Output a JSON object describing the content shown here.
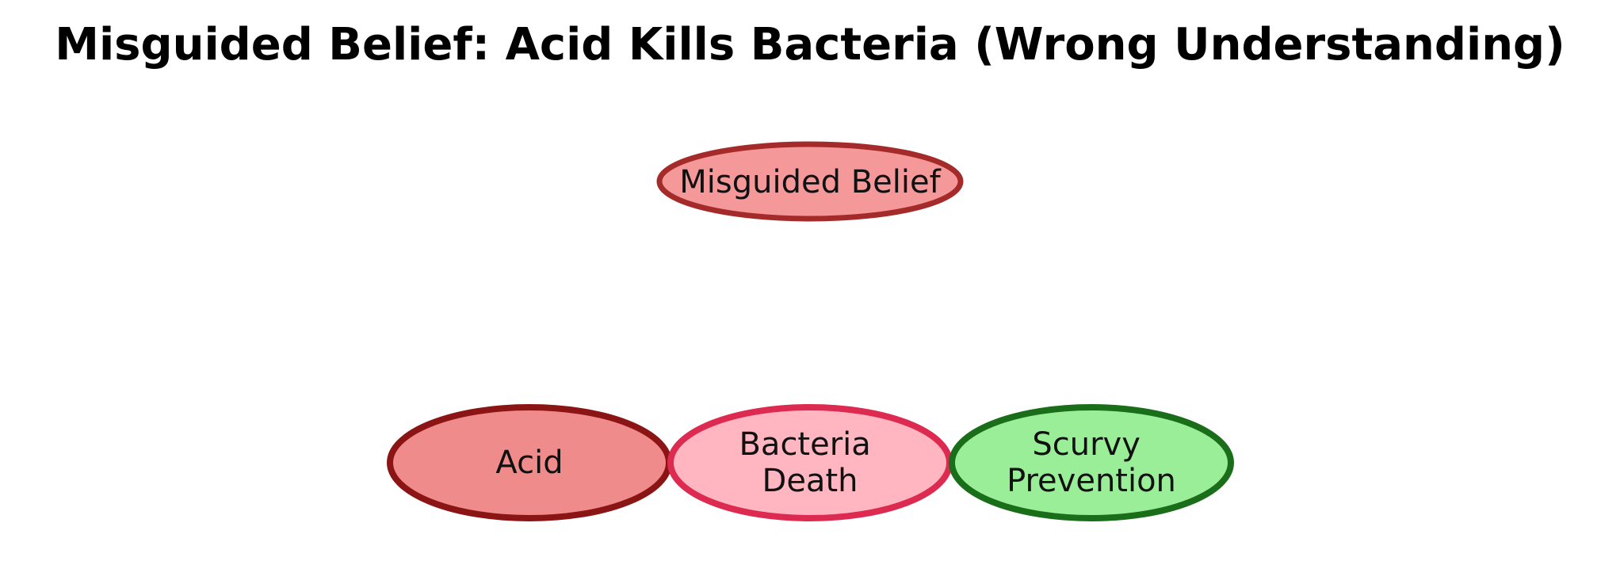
{
  "title": "Misguided Belief: Acid Kills Bacteria (Wrong Understanding)",
  "nodes": {
    "misguided_belief": {
      "lines": [
        "Misguided Belief"
      ],
      "fill": "#F4989A",
      "stroke": "#A52A2A"
    },
    "acid": {
      "lines": [
        "Acid"
      ],
      "fill": "#F08B8B",
      "stroke": "#8B1414"
    },
    "bacteria_death": {
      "lines": [
        "Bacteria",
        "Death"
      ],
      "fill": "#FFB6C1",
      "stroke": "#DC2A50"
    },
    "scurvy_prevention": {
      "lines": [
        "Scurvy",
        "Prevention"
      ],
      "fill": "#9AEE98",
      "stroke": "#1A6E1A"
    }
  }
}
